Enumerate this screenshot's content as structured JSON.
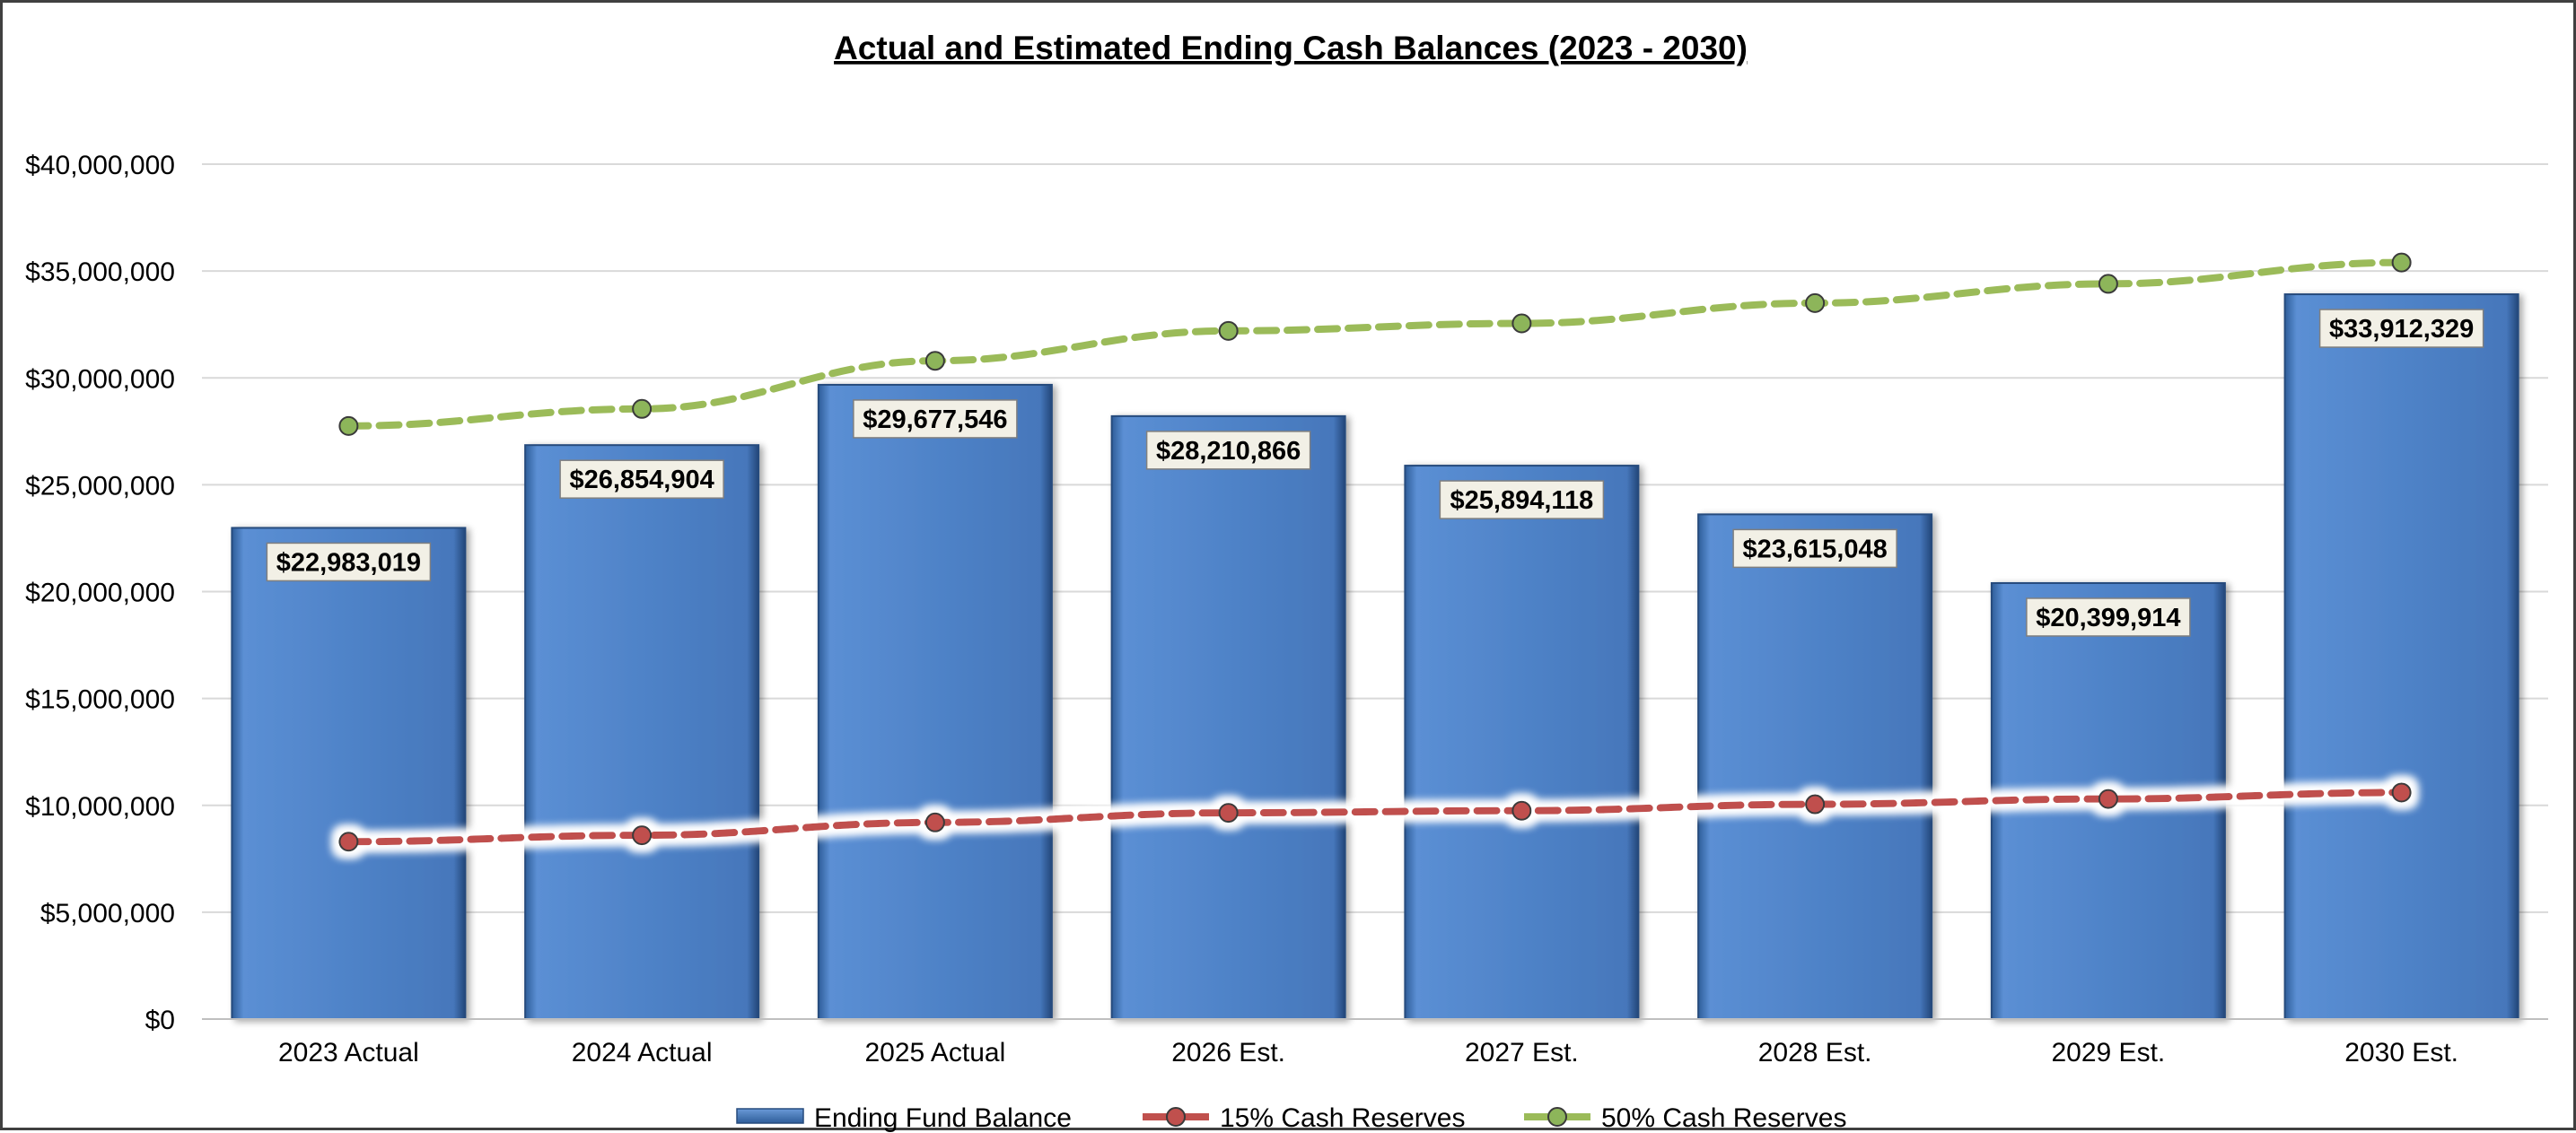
{
  "chart_data": {
    "type": "bar",
    "title": "Actual and Estimated Ending Cash Balances (2023 - 2030)",
    "xlabel": "",
    "ylabel": "",
    "categories": [
      "2023 Actual",
      "2024 Actual",
      "2025 Actual",
      "2026 Est.",
      "2027 Est.",
      "2028 Est.",
      "2029 Est.",
      "2030 Est."
    ],
    "ylim": [
      0,
      40000000
    ],
    "yticks": [
      0,
      5000000,
      10000000,
      15000000,
      20000000,
      25000000,
      30000000,
      35000000,
      40000000
    ],
    "ytick_labels": [
      "$0",
      "$5,000,000",
      "$10,000,000",
      "$15,000,000",
      "$20,000,000",
      "$25,000,000",
      "$30,000,000",
      "$35,000,000",
      "$40,000,000"
    ],
    "grid": true,
    "legend_position": "bottom",
    "series": [
      {
        "name": "Ending Fund Balance",
        "kind": "bar",
        "color": "#4a7ec4",
        "values": [
          22983019,
          26854904,
          29677546,
          28210866,
          25894118,
          23615048,
          20399914,
          33912329
        ],
        "data_labels": [
          "$22,983,019",
          "$26,854,904",
          "$29,677,546",
          "$28,210,866",
          "$25,894,118",
          "$23,615,048",
          "$20,399,914",
          "$33,912,329"
        ]
      },
      {
        "name": "15% Cash Reserves",
        "kind": "line",
        "style": "dashed",
        "color": "#c0504d",
        "marker_color": "#c0504d",
        "values": [
          8300000,
          8600000,
          9200000,
          9650000,
          9750000,
          10050000,
          10300000,
          10600000
        ]
      },
      {
        "name": "50% Cash Reserves",
        "kind": "line",
        "style": "dashed",
        "color": "#9bbb59",
        "marker_color": "#8db55a",
        "values": [
          27750000,
          28550000,
          30800000,
          32200000,
          32550000,
          33500000,
          34400000,
          35400000
        ]
      }
    ]
  }
}
